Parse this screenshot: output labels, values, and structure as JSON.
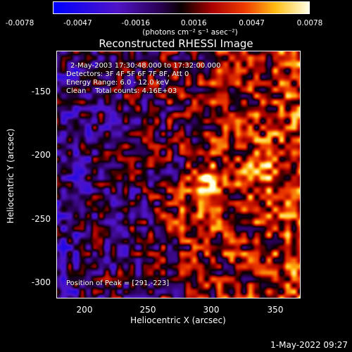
{
  "colorbar": {
    "ticks": [
      "-0.0078",
      "-0.0047",
      "-0.0016",
      "0.0016",
      "0.0047",
      "0.0078"
    ],
    "units": "(photons cm⁻² s⁻¹ asec⁻²)"
  },
  "title": "Reconstructed RHESSI Image",
  "info": {
    "time_range": "2-May-2003 17:30:48.000 to 17:32:00.000",
    "detectors": "Detectors: 3F 4F 5F 6F 7F 8F, Att 0",
    "energy": "Energy Range: 6.0 - 12.0 keV",
    "clean": "Clean    Total counts: 4.16E+03",
    "peak": "Position of Peak = [291,-223]"
  },
  "axes": {
    "ylabel": "Heliocentric Y (arcsec)",
    "xlabel": "Heliocentric X (arcsec)",
    "yticks": [
      "-150",
      "-200",
      "-250",
      "-300"
    ],
    "xticks": [
      "200",
      "250",
      "300",
      "350"
    ],
    "x_range": [
      177,
      370
    ],
    "y_range": [
      -312,
      -122
    ]
  },
  "timestamp": "1-May-2022 09:27",
  "colors": {
    "text": "#ffffff",
    "background": "#000000"
  }
}
